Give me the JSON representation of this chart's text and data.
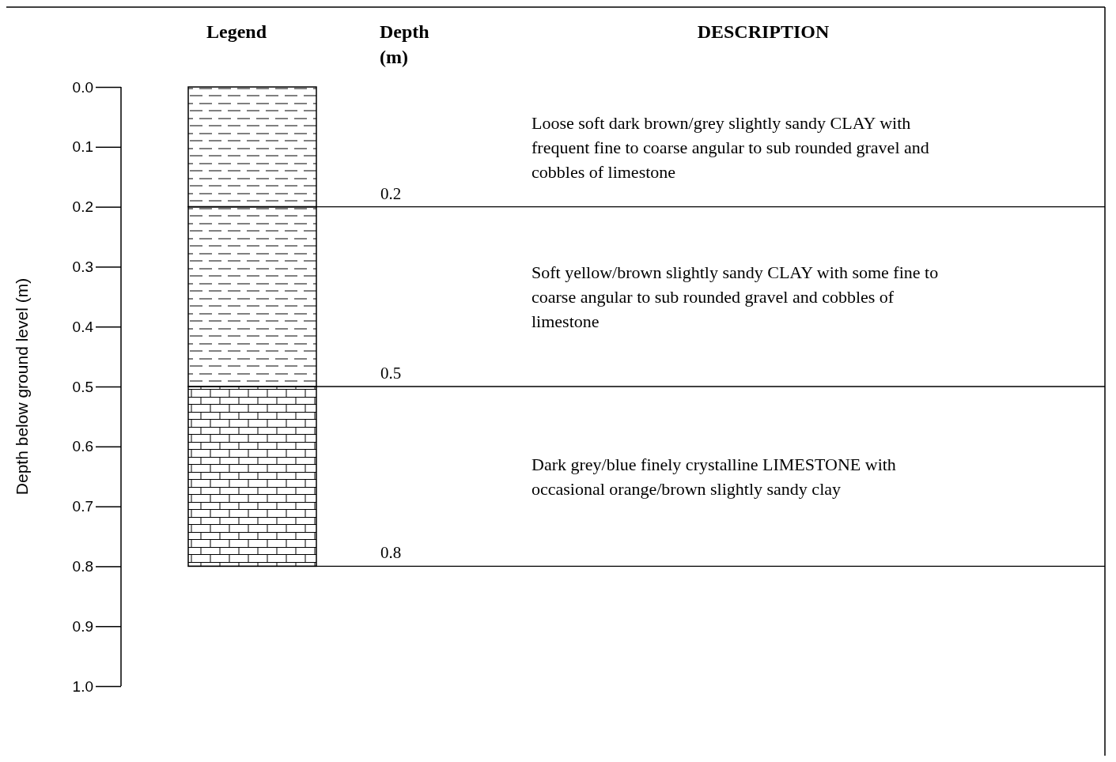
{
  "chart_data": {
    "type": "bar",
    "stacked": true,
    "categories": [
      "Legend"
    ],
    "series": [
      {
        "color": "#000000",
        "values": [
          0.2
        ]
      },
      {
        "color": "#000000",
        "values": [
          0.3
        ]
      },
      {
        "color": "#000000",
        "values": [
          0.3
        ]
      }
    ],
    "ylabel": "Depth below ground level (m)",
    "ylim": [
      1.0,
      0.0
    ],
    "yticks": [
      {
        "value": 0,
        "label": "0.0"
      },
      0.1,
      0.2,
      0.3,
      0.4,
      0.5,
      0.6,
      0.7,
      0.8,
      0.9,
      {
        "value": 1,
        "label": "1.0"
      }
    ],
    "ref_lines": [
      {
        "axis": "y",
        "value": 0.2,
        "label": "0.2"
      },
      {
        "axis": "y",
        "value": 0.5,
        "label": "0.5"
      },
      {
        "axis": "y",
        "value": 0.8,
        "label": "0.8"
      }
    ],
    "annotations": [
      "Depth (m)",
      "DESCRIPTION",
      "Loose soft dark brown/grey slightly sandy CLAY with frequent fine to coarse angular to sub rounded gravel and cobbles of limestone",
      "Soft yellow/brown slightly sandy CLAY with some fine to coarse angular to sub rounded gravel and cobbles of limestone",
      "Dark grey/blue finely crystalline LIMESTONE with occasional orange/brown slightly sandy clay"
    ]
  }
}
